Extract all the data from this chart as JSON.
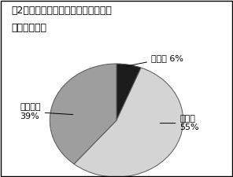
{
  "title_line1": "図2　開業後、協会が役に立ったこと",
  "title_line2": "　があったか",
  "wedge_sizes": [
    6,
    55,
    39
  ],
  "wedge_colors": [
    "#1c1c1c",
    "#d4d4d4",
    "#9e9e9e"
  ],
  "wedge_edge_color": "#555555",
  "label_mukaitou": "無回答 6%",
  "label_atta": "あった\n55%",
  "label_nakatta": "なかった\n39%",
  "startangle": 90,
  "background_color": "#ffffff",
  "text_color": "#000000",
  "title_fontsize": 9,
  "label_fontsize": 8
}
